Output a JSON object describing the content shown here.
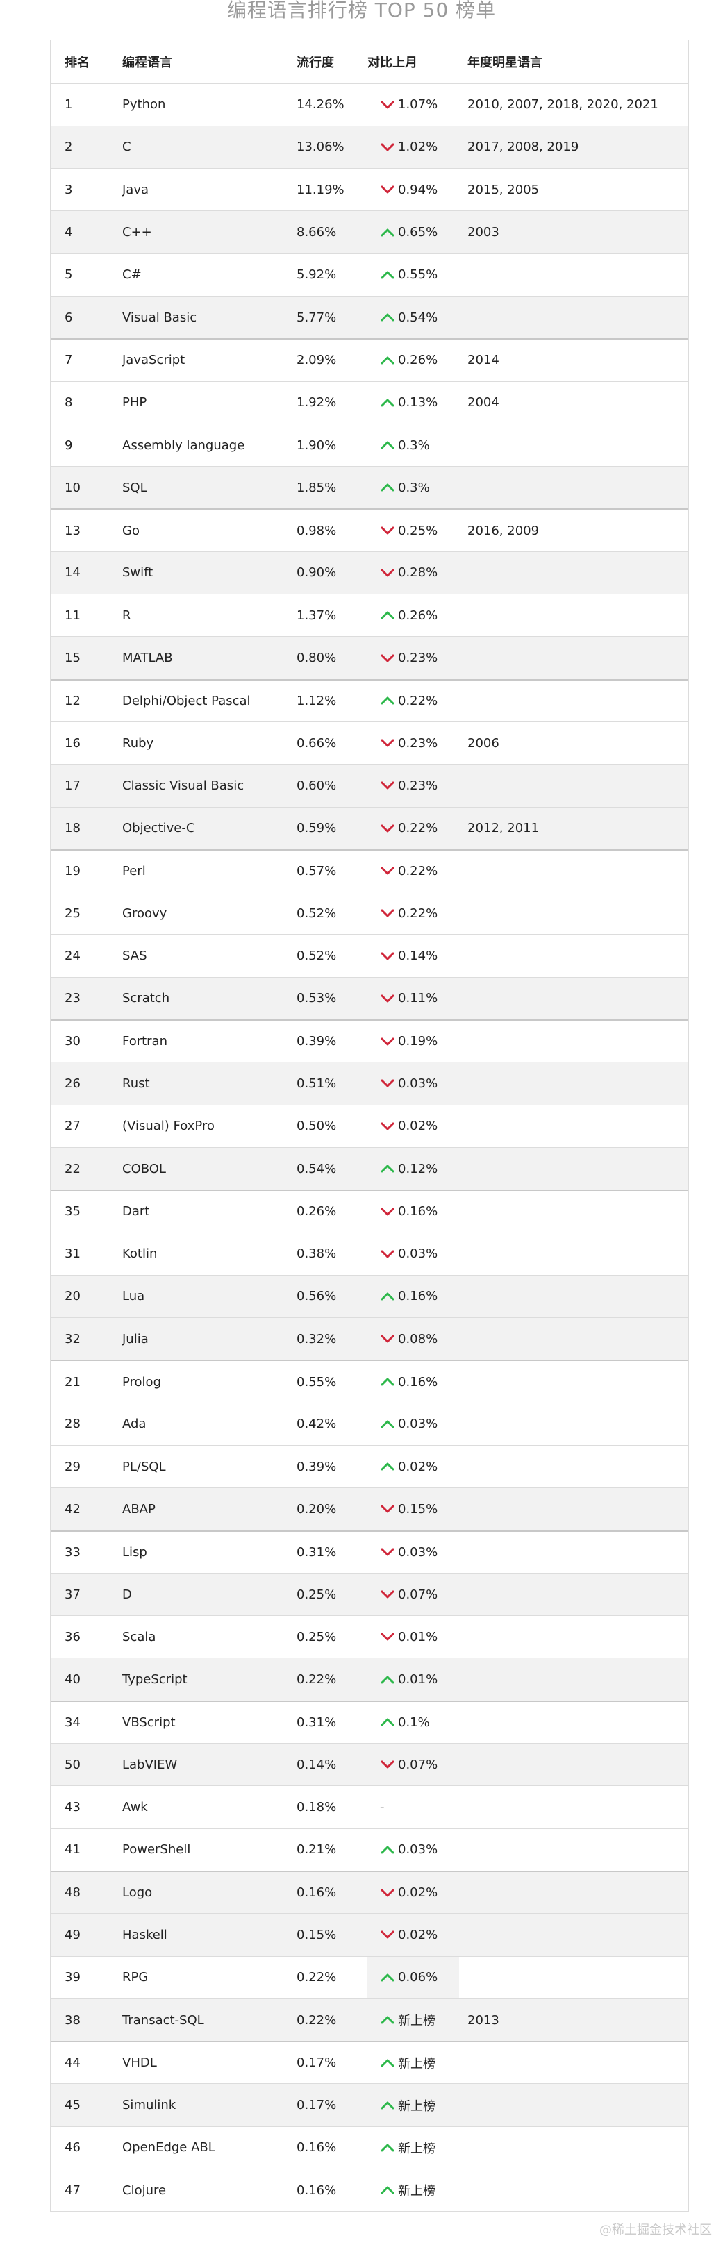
{
  "title": "编程语言排行榜 TOP 50 榜单",
  "columns": {
    "rank": "排名",
    "language": "编程语言",
    "popularity": "流行度",
    "change": "对比上月",
    "star_years": "年度明星语言"
  },
  "colors": {
    "up": "#2db84b",
    "down": "#d0263a",
    "row_shade": "#f2f2f2",
    "border": "#dcdcdc",
    "title": "#9a9a9a"
  },
  "rows": [
    {
      "rank": "1",
      "language": "Python",
      "popularity": "14.26%",
      "direction": "down",
      "change": "1.07%",
      "years": "2010, 2007, 2018, 2020, 2021"
    },
    {
      "rank": "2",
      "language": "C",
      "popularity": "13.06%",
      "direction": "down",
      "change": "1.02%",
      "years": "2017, 2008, 2019"
    },
    {
      "rank": "3",
      "language": "Java",
      "popularity": "11.19%",
      "direction": "down",
      "change": "0.94%",
      "years": "2015, 2005"
    },
    {
      "rank": "4",
      "language": "C++",
      "popularity": "8.66%",
      "direction": "up",
      "change": "0.65%",
      "years": "2003"
    },
    {
      "rank": "5",
      "language": "C#",
      "popularity": "5.92%",
      "direction": "up",
      "change": "0.55%",
      "years": ""
    },
    {
      "rank": "6",
      "language": "Visual Basic",
      "popularity": "5.77%",
      "direction": "up",
      "change": "0.54%",
      "years": ""
    },
    {
      "rank": "7",
      "language": "JavaScript",
      "popularity": "2.09%",
      "direction": "up",
      "change": "0.26%",
      "years": "2014"
    },
    {
      "rank": "8",
      "language": "PHP",
      "popularity": "1.92%",
      "direction": "up",
      "change": "0.13%",
      "years": "2004"
    },
    {
      "rank": "9",
      "language": "Assembly language",
      "popularity": "1.90%",
      "direction": "up",
      "change": "0.3%",
      "years": ""
    },
    {
      "rank": "10",
      "language": "SQL",
      "popularity": "1.85%",
      "direction": "up",
      "change": "0.3%",
      "years": ""
    },
    {
      "rank": "13",
      "language": "Go",
      "popularity": "0.98%",
      "direction": "down",
      "change": "0.25%",
      "years": "2016, 2009"
    },
    {
      "rank": "14",
      "language": "Swift",
      "popularity": "0.90%",
      "direction": "down",
      "change": "0.28%",
      "years": ""
    },
    {
      "rank": "11",
      "language": "R",
      "popularity": "1.37%",
      "direction": "up",
      "change": "0.26%",
      "years": ""
    },
    {
      "rank": "15",
      "language": "MATLAB",
      "popularity": "0.80%",
      "direction": "down",
      "change": "0.23%",
      "years": ""
    },
    {
      "rank": "12",
      "language": "Delphi/Object Pascal",
      "popularity": "1.12%",
      "direction": "up",
      "change": "0.22%",
      "years": ""
    },
    {
      "rank": "16",
      "language": "Ruby",
      "popularity": "0.66%",
      "direction": "down",
      "change": "0.23%",
      "years": "2006"
    },
    {
      "rank": "17",
      "language": "Classic Visual Basic",
      "popularity": "0.60%",
      "direction": "down",
      "change": "0.23%",
      "years": ""
    },
    {
      "rank": "18",
      "language": "Objective-C",
      "popularity": "0.59%",
      "direction": "down",
      "change": "0.22%",
      "years": "2012, 2011"
    },
    {
      "rank": "19",
      "language": "Perl",
      "popularity": "0.57%",
      "direction": "down",
      "change": "0.22%",
      "years": ""
    },
    {
      "rank": "25",
      "language": "Groovy",
      "popularity": "0.52%",
      "direction": "down",
      "change": "0.22%",
      "years": ""
    },
    {
      "rank": "24",
      "language": "SAS",
      "popularity": "0.52%",
      "direction": "down",
      "change": "0.14%",
      "years": ""
    },
    {
      "rank": "23",
      "language": "Scratch",
      "popularity": "0.53%",
      "direction": "down",
      "change": "0.11%",
      "years": ""
    },
    {
      "rank": "30",
      "language": "Fortran",
      "popularity": "0.39%",
      "direction": "down",
      "change": "0.19%",
      "years": ""
    },
    {
      "rank": "26",
      "language": "Rust",
      "popularity": "0.51%",
      "direction": "down",
      "change": "0.03%",
      "years": ""
    },
    {
      "rank": "27",
      "language": "(Visual) FoxPro",
      "popularity": "0.50%",
      "direction": "down",
      "change": "0.02%",
      "years": ""
    },
    {
      "rank": "22",
      "language": "COBOL",
      "popularity": "0.54%",
      "direction": "up",
      "change": "0.12%",
      "years": ""
    },
    {
      "rank": "35",
      "language": "Dart",
      "popularity": "0.26%",
      "direction": "down",
      "change": "0.16%",
      "years": ""
    },
    {
      "rank": "31",
      "language": "Kotlin",
      "popularity": "0.38%",
      "direction": "down",
      "change": "0.03%",
      "years": ""
    },
    {
      "rank": "20",
      "language": "Lua",
      "popularity": "0.56%",
      "direction": "up",
      "change": "0.16%",
      "years": ""
    },
    {
      "rank": "32",
      "language": "Julia",
      "popularity": "0.32%",
      "direction": "down",
      "change": "0.08%",
      "years": ""
    },
    {
      "rank": "21",
      "language": "Prolog",
      "popularity": "0.55%",
      "direction": "up",
      "change": "0.16%",
      "years": ""
    },
    {
      "rank": "28",
      "language": "Ada",
      "popularity": "0.42%",
      "direction": "up",
      "change": "0.03%",
      "years": ""
    },
    {
      "rank": "29",
      "language": "PL/SQL",
      "popularity": "0.39%",
      "direction": "up",
      "change": "0.02%",
      "years": ""
    },
    {
      "rank": "42",
      "language": "ABAP",
      "popularity": "0.20%",
      "direction": "down",
      "change": "0.15%",
      "years": ""
    },
    {
      "rank": "33",
      "language": "Lisp",
      "popularity": "0.31%",
      "direction": "down",
      "change": "0.03%",
      "years": ""
    },
    {
      "rank": "37",
      "language": "D",
      "popularity": "0.25%",
      "direction": "down",
      "change": "0.07%",
      "years": ""
    },
    {
      "rank": "36",
      "language": "Scala",
      "popularity": "0.25%",
      "direction": "down",
      "change": "0.01%",
      "years": ""
    },
    {
      "rank": "40",
      "language": "TypeScript",
      "popularity": "0.22%",
      "direction": "up",
      "change": "0.01%",
      "years": ""
    },
    {
      "rank": "34",
      "language": "VBScript",
      "popularity": "0.31%",
      "direction": "up",
      "change": "0.1%",
      "years": ""
    },
    {
      "rank": "50",
      "language": "LabVIEW",
      "popularity": "0.14%",
      "direction": "down",
      "change": "0.07%",
      "years": ""
    },
    {
      "rank": "43",
      "language": "Awk",
      "popularity": "0.18%",
      "direction": "none",
      "change": "-",
      "years": ""
    },
    {
      "rank": "41",
      "language": "PowerShell",
      "popularity": "0.21%",
      "direction": "up",
      "change": "0.03%",
      "years": ""
    },
    {
      "rank": "48",
      "language": "Logo",
      "popularity": "0.16%",
      "direction": "down",
      "change": "0.02%",
      "years": ""
    },
    {
      "rank": "49",
      "language": "Haskell",
      "popularity": "0.15%",
      "direction": "down",
      "change": "0.02%",
      "years": ""
    },
    {
      "rank": "39",
      "language": "RPG",
      "popularity": "0.22%",
      "direction": "up",
      "change": "0.06%",
      "years": ""
    },
    {
      "rank": "38",
      "language": "Transact-SQL",
      "popularity": "0.22%",
      "direction": "up",
      "change": "新上榜",
      "years": "2013"
    },
    {
      "rank": "44",
      "language": "VHDL",
      "popularity": "0.17%",
      "direction": "up",
      "change": "新上榜",
      "years": ""
    },
    {
      "rank": "45",
      "language": "Simulink",
      "popularity": "0.17%",
      "direction": "up",
      "change": "新上榜",
      "years": ""
    },
    {
      "rank": "46",
      "language": "OpenEdge ABL",
      "popularity": "0.16%",
      "direction": "up",
      "change": "新上榜",
      "years": ""
    },
    {
      "rank": "47",
      "language": "Clojure",
      "popularity": "0.16%",
      "direction": "up",
      "change": "新上榜",
      "years": ""
    }
  ],
  "watermark": "@稀土掘金技术社区"
}
